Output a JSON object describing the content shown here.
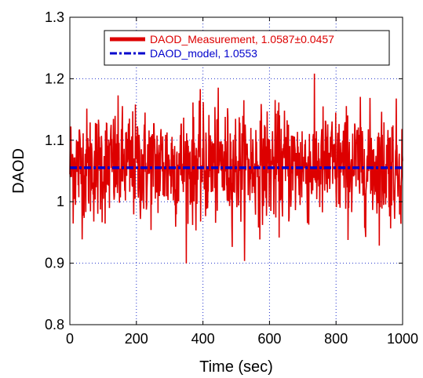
{
  "chart_data": {
    "type": "line",
    "xlabel": "Time (sec)",
    "ylabel": "DAOD",
    "xlim": [
      0,
      1000
    ],
    "ylim": [
      0.8,
      1.3
    ],
    "x_ticks": [
      0,
      200,
      400,
      600,
      800,
      1000
    ],
    "y_ticks": [
      0.8,
      0.9,
      1,
      1.1,
      1.2,
      1.3
    ],
    "x_tick_labels": [
      "0",
      "200",
      "400",
      "600",
      "800",
      "1000"
    ],
    "y_tick_labels": [
      "0.8",
      "0.9",
      "1",
      "1.1",
      "1.2",
      "1.3"
    ],
    "grid": true,
    "legend_position": "top-right",
    "series": [
      {
        "name": "DAOD_Measurement, 1.0587±0.0457",
        "color": "#dd0000",
        "style": "solid",
        "mean": 1.0587,
        "std": 0.0457,
        "x_range": [
          0,
          1000
        ],
        "observed_range": [
          0.88,
          1.215
        ]
      },
      {
        "name": "DAOD_model, 1.0553",
        "color": "#0000cc",
        "style": "dash-dot",
        "x": [
          0,
          1000
        ],
        "y": [
          1.0553,
          1.0553
        ]
      }
    ]
  }
}
